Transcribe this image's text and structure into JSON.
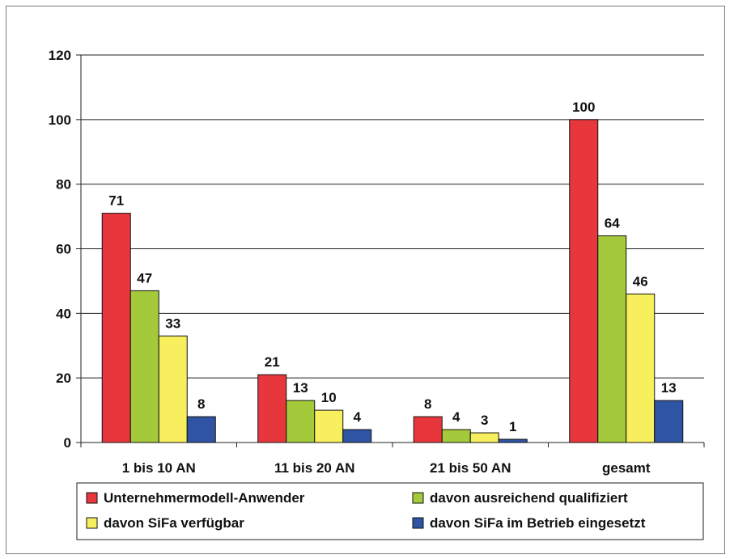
{
  "chart_data": {
    "type": "bar",
    "categories": [
      "1 bis 10 AN",
      "11 bis 20 AN",
      "21 bis 50 AN",
      "gesamt"
    ],
    "series": [
      {
        "name": "Unternehmermodell-Anwender",
        "color": "#e8373c",
        "values": [
          71,
          21,
          8,
          100
        ]
      },
      {
        "name": "davon ausreichend qualifiziert",
        "color": "#a4c93a",
        "values": [
          47,
          13,
          4,
          64
        ]
      },
      {
        "name": "davon SiFa verfügbar",
        "color": "#f7ef5d",
        "values": [
          33,
          10,
          3,
          46
        ]
      },
      {
        "name": "davon SiFa im Betrieb eingesetzt",
        "color": "#2f54a4",
        "values": [
          8,
          4,
          1,
          13
        ]
      }
    ],
    "ylim": [
      0,
      120
    ],
    "yticks": [
      0,
      20,
      40,
      60,
      80,
      100,
      120
    ],
    "grid": true,
    "legend_position": "bottom",
    "title": "",
    "xlabel": "",
    "ylabel": ""
  }
}
